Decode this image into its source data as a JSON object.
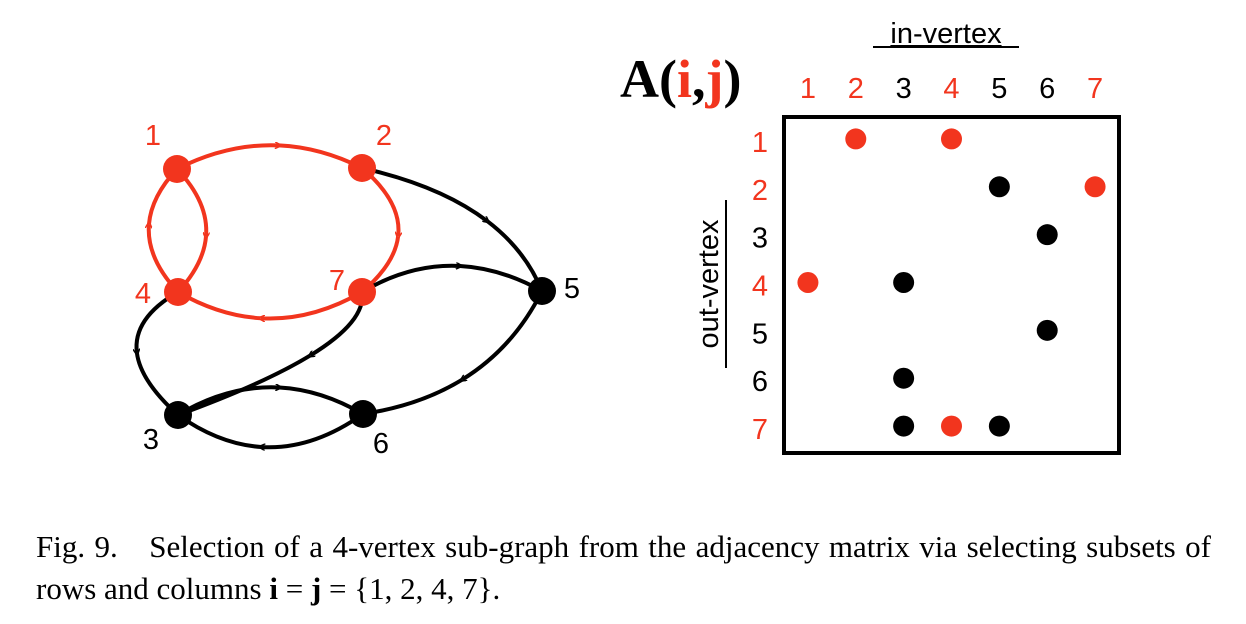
{
  "colors": {
    "highlight": "#f2351e",
    "normal": "#000000"
  },
  "graph": {
    "vertices": [
      {
        "id": "1",
        "selected": true
      },
      {
        "id": "2",
        "selected": true
      },
      {
        "id": "3",
        "selected": false
      },
      {
        "id": "4",
        "selected": true
      },
      {
        "id": "5",
        "selected": false
      },
      {
        "id": "6",
        "selected": false
      },
      {
        "id": "7",
        "selected": true
      }
    ],
    "edges": [
      {
        "from": "1",
        "to": "2",
        "selected": true
      },
      {
        "from": "1",
        "to": "4",
        "selected": true
      },
      {
        "from": "4",
        "to": "1",
        "selected": true
      },
      {
        "from": "2",
        "to": "7",
        "selected": true
      },
      {
        "from": "7",
        "to": "4",
        "selected": true
      },
      {
        "from": "2",
        "to": "5",
        "selected": false
      },
      {
        "from": "7",
        "to": "5",
        "selected": false
      },
      {
        "from": "7",
        "to": "3",
        "selected": false
      },
      {
        "from": "4",
        "to": "3",
        "selected": false
      },
      {
        "from": "3",
        "to": "6",
        "selected": false
      },
      {
        "from": "6",
        "to": "3",
        "selected": false
      },
      {
        "from": "5",
        "to": "6",
        "selected": false
      }
    ]
  },
  "matrix": {
    "title_letter": "A",
    "title_open": "(",
    "title_i": "i",
    "title_comma": ",",
    "title_j": "j",
    "title_close": ")",
    "column_axis_label": "in-vertex",
    "row_axis_label": "out-vertex",
    "labels": [
      "1",
      "2",
      "3",
      "4",
      "5",
      "6",
      "7"
    ],
    "selected_indices": [
      1,
      2,
      4,
      7
    ],
    "entries": [
      {
        "row": 1,
        "col": 2
      },
      {
        "row": 1,
        "col": 4
      },
      {
        "row": 2,
        "col": 5
      },
      {
        "row": 2,
        "col": 7
      },
      {
        "row": 3,
        "col": 6
      },
      {
        "row": 4,
        "col": 1
      },
      {
        "row": 4,
        "col": 3
      },
      {
        "row": 5,
        "col": 6
      },
      {
        "row": 6,
        "col": 3
      },
      {
        "row": 7,
        "col": 3
      },
      {
        "row": 7,
        "col": 4
      },
      {
        "row": 7,
        "col": 5
      }
    ]
  },
  "caption": {
    "label": "Fig. 9.",
    "text_before": "Selection of a 4-vertex sub-graph from the adjacency matrix via selecting subsets of rows and columns ",
    "bold_i": "i",
    "eq1": " = ",
    "bold_j": "j",
    "eq2": " = {1, 2, 4, 7}."
  }
}
